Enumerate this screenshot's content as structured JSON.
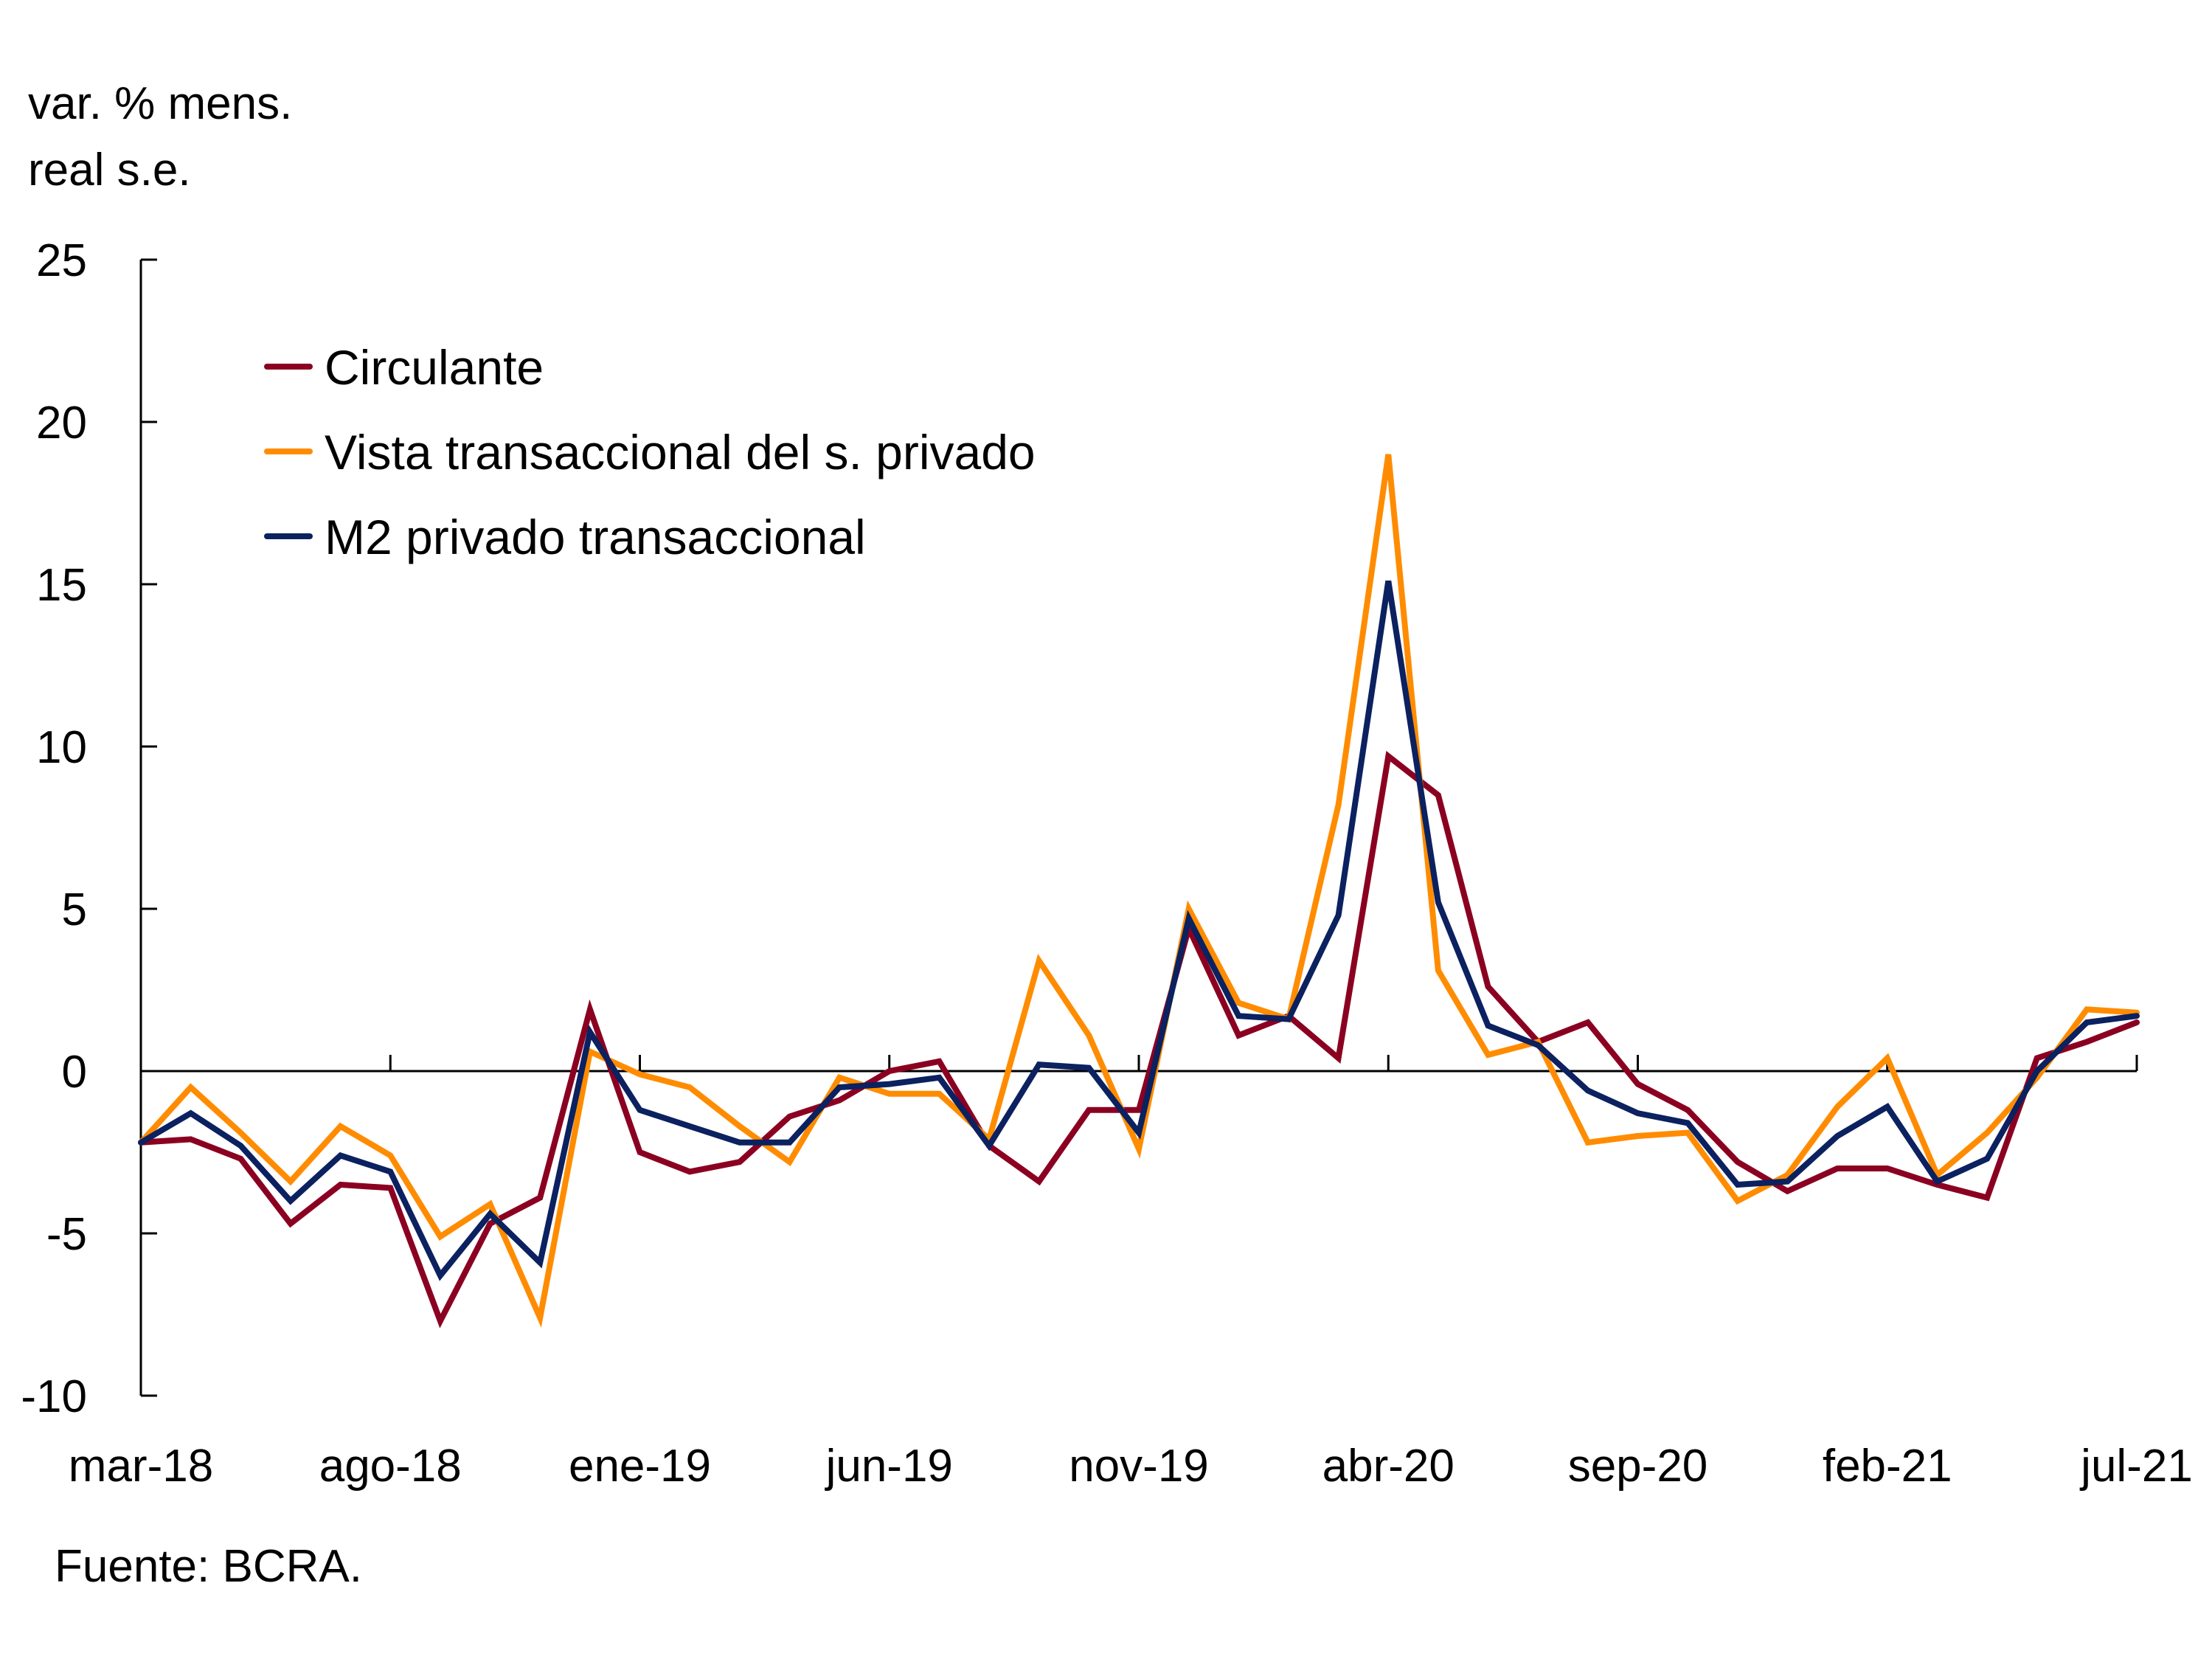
{
  "chart_data": {
    "type": "line",
    "title": "",
    "ylabel_lines": [
      "var. % mens.",
      "real s.e."
    ],
    "xlabel": "",
    "source": "Fuente: BCRA.",
    "ylim": [
      -10,
      25
    ],
    "yticks": [
      -10,
      -5,
      0,
      5,
      10,
      15,
      20,
      25
    ],
    "xtick_labels": [
      "mar-18",
      "ago-18",
      "ene-19",
      "jun-19",
      "nov-19",
      "abr-20",
      "sep-20",
      "feb-21",
      "jul-21"
    ],
    "xtick_every": 5,
    "legend_position": "top-left",
    "grid": false,
    "x": [
      "mar-18",
      "abr-18",
      "may-18",
      "jun-18",
      "jul-18",
      "ago-18",
      "sep-18",
      "oct-18",
      "nov-18",
      "dic-18",
      "ene-19",
      "feb-19",
      "mar-19",
      "abr-19",
      "may-19",
      "jun-19",
      "jul-19",
      "ago-19",
      "sep-19",
      "oct-19",
      "nov-19",
      "dic-19",
      "ene-20",
      "feb-20",
      "mar-20",
      "abr-20",
      "may-20",
      "jun-20",
      "jul-20",
      "ago-20",
      "sep-20",
      "oct-20",
      "nov-20",
      "dic-20",
      "ene-21",
      "feb-21",
      "mar-21",
      "abr-21",
      "may-21",
      "jun-21",
      "jul-21"
    ],
    "series": [
      {
        "name": "Circulante",
        "color": "#8B0021",
        "values": [
          -2.2,
          -2.1,
          -2.7,
          -4.7,
          -3.5,
          -3.6,
          -7.7,
          -4.7,
          -3.9,
          1.9,
          -2.5,
          -3.1,
          -2.8,
          -1.4,
          -0.9,
          0.0,
          0.3,
          -2.3,
          -3.4,
          -1.2,
          -1.2,
          4.4,
          1.1,
          1.7,
          0.4,
          9.7,
          8.5,
          2.6,
          0.9,
          1.5,
          -0.4,
          -1.2,
          -2.8,
          -3.7,
          -3.0,
          -3.0,
          -3.5,
          -3.9,
          0.4,
          0.9,
          1.5
        ]
      },
      {
        "name": "Vista transaccional del s. privado",
        "color": "#FF8C00",
        "values": [
          -2.2,
          -0.5,
          -1.9,
          -3.4,
          -1.7,
          -2.6,
          -5.1,
          -4.1,
          -7.6,
          0.6,
          -0.1,
          -0.5,
          -1.7,
          -2.8,
          -0.2,
          -0.7,
          -0.7,
          -2.1,
          3.4,
          1.1,
          -2.4,
          5.0,
          2.1,
          1.6,
          8.2,
          19.0,
          3.1,
          0.5,
          0.9,
          -2.2,
          -2.0,
          -1.9,
          -4.0,
          -3.2,
          -1.1,
          0.4,
          -3.2,
          -1.9,
          -0.2,
          1.9,
          1.8
        ]
      },
      {
        "name": "M2 privado transaccional",
        "color": "#0B2160",
        "values": [
          -2.2,
          -1.3,
          -2.3,
          -4.0,
          -2.6,
          -3.1,
          -6.3,
          -4.4,
          -5.9,
          1.2,
          -1.2,
          -1.7,
          -2.2,
          -2.2,
          -0.5,
          -0.4,
          -0.2,
          -2.3,
          0.2,
          0.1,
          -1.9,
          4.7,
          1.7,
          1.6,
          4.8,
          15.1,
          5.2,
          1.4,
          0.8,
          -0.6,
          -1.3,
          -1.6,
          -3.5,
          -3.4,
          -2.0,
          -1.1,
          -3.4,
          -2.7,
          0.0,
          1.5,
          1.7
        ]
      }
    ]
  }
}
